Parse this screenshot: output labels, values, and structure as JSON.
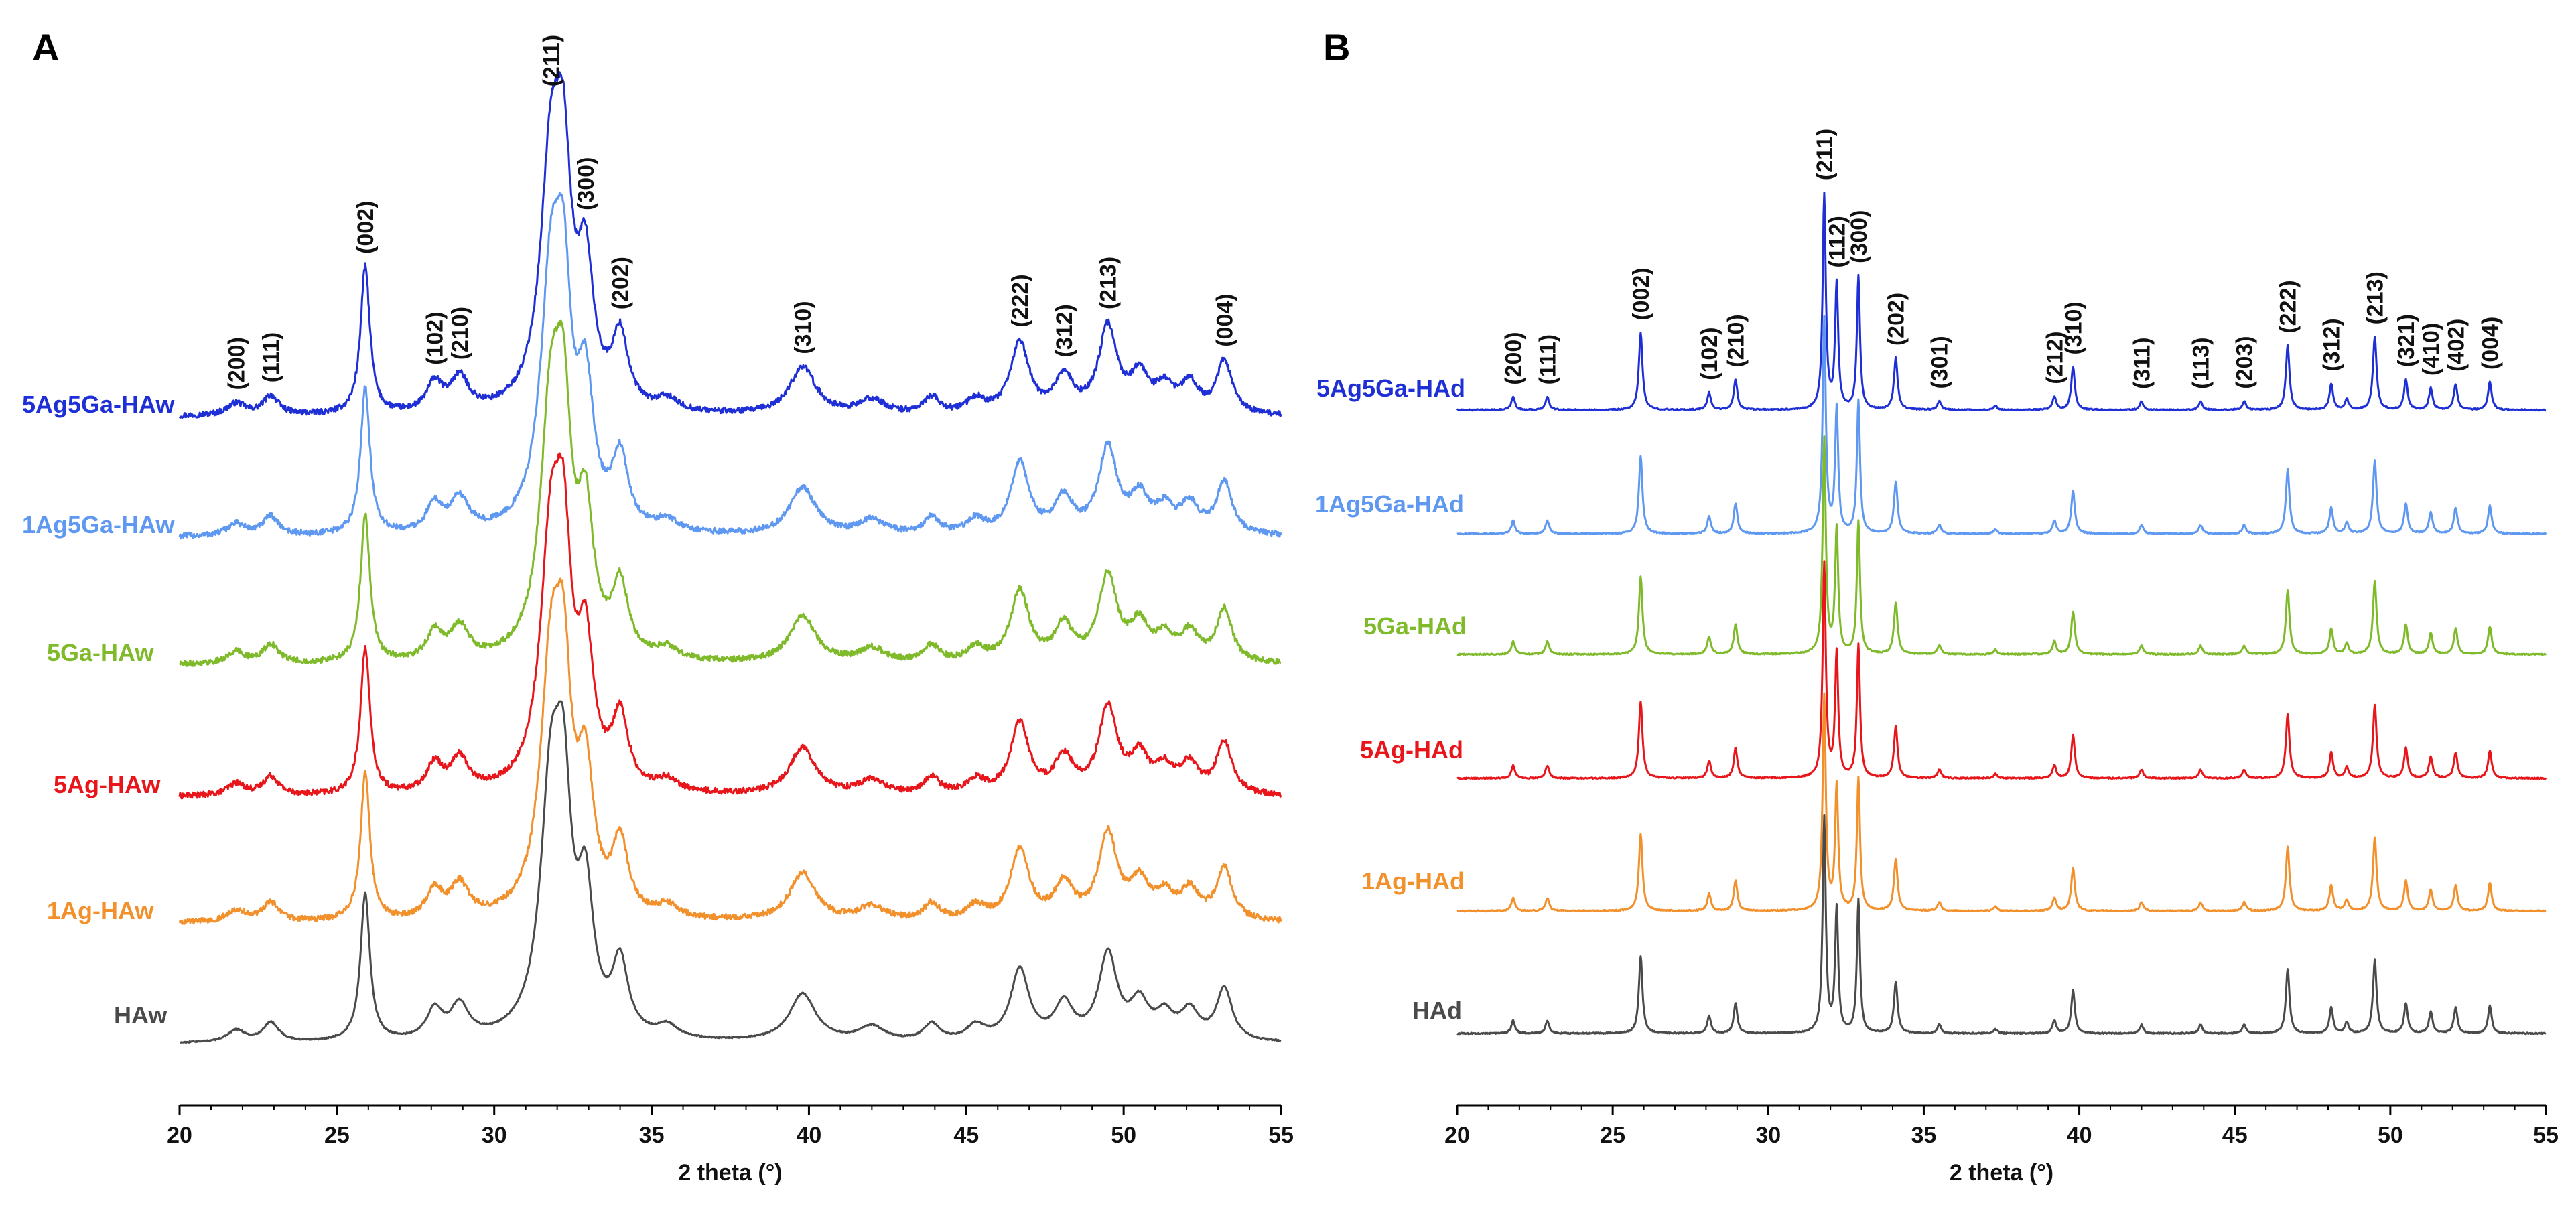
{
  "chart_data": [
    {
      "type": "line",
      "panel": "A",
      "xlabel": "2 theta (°)",
      "ylabel": "",
      "xlim": [
        20,
        55
      ],
      "x_ticks": [
        "20",
        "25",
        "30",
        "35",
        "40",
        "45",
        "50",
        "55"
      ],
      "linewidth_style": "broad",
      "peaks": [
        {
          "pos": 21.8,
          "h": 0.05,
          "w": 0.35
        },
        {
          "pos": 22.9,
          "h": 0.08,
          "w": 0.3
        },
        {
          "pos": 25.9,
          "h": 0.62,
          "w": 0.18
        },
        {
          "pos": 28.1,
          "h": 0.12,
          "w": 0.3
        },
        {
          "pos": 28.9,
          "h": 0.14,
          "w": 0.35
        },
        {
          "pos": 31.8,
          "h": 1.0,
          "w": 0.4
        },
        {
          "pos": 32.2,
          "h": 0.8,
          "w": 0.3
        },
        {
          "pos": 32.9,
          "h": 0.55,
          "w": 0.3
        },
        {
          "pos": 34.0,
          "h": 0.3,
          "w": 0.3
        },
        {
          "pos": 35.5,
          "h": 0.05,
          "w": 0.4
        },
        {
          "pos": 39.8,
          "h": 0.2,
          "w": 0.5
        },
        {
          "pos": 42.0,
          "h": 0.06,
          "w": 0.5
        },
        {
          "pos": 43.9,
          "h": 0.07,
          "w": 0.3
        },
        {
          "pos": 45.3,
          "h": 0.06,
          "w": 0.35
        },
        {
          "pos": 46.7,
          "h": 0.3,
          "w": 0.35
        },
        {
          "pos": 48.1,
          "h": 0.15,
          "w": 0.35
        },
        {
          "pos": 49.5,
          "h": 0.36,
          "w": 0.35
        },
        {
          "pos": 50.5,
          "h": 0.15,
          "w": 0.35
        },
        {
          "pos": 51.3,
          "h": 0.1,
          "w": 0.35
        },
        {
          "pos": 52.1,
          "h": 0.12,
          "w": 0.35
        },
        {
          "pos": 53.2,
          "h": 0.22,
          "w": 0.3
        }
      ],
      "series": [
        {
          "name": "5Ag5Ga-HAw",
          "color": "#1f2fd6",
          "noise": 0.012
        },
        {
          "name": "1Ag5Ga-HAw",
          "color": "#5f98f0",
          "noise": 0.012
        },
        {
          "name": "5Ga-HAw",
          "color": "#7fba2a",
          "noise": 0.012
        },
        {
          "name": "5Ag-HAw",
          "color": "#e8161b",
          "noise": 0.012
        },
        {
          "name": "1Ag-HAw",
          "color": "#f2902b",
          "noise": 0.012
        },
        {
          "name": "HAw",
          "color": "#4a4a4a",
          "noise": 0.003
        }
      ],
      "annotations": [
        {
          "label": "(200)",
          "x": 21.8
        },
        {
          "label": "(111)",
          "x": 22.9
        },
        {
          "label": "(002)",
          "x": 25.9
        },
        {
          "label": "(102)",
          "x": 28.1
        },
        {
          "label": "(210)",
          "x": 28.9
        },
        {
          "label": "(211)",
          "x": 31.8
        },
        {
          "label": "(300)",
          "x": 32.9
        },
        {
          "label": "(202)",
          "x": 34.0
        },
        {
          "label": "(310)",
          "x": 39.8
        },
        {
          "label": "(222)",
          "x": 46.7
        },
        {
          "label": "(312)",
          "x": 48.1
        },
        {
          "label": "(213)",
          "x": 49.5
        },
        {
          "label": "(004)",
          "x": 53.2
        }
      ]
    },
    {
      "type": "line",
      "panel": "B",
      "xlabel": "2 theta (°)",
      "ylabel": "",
      "xlim": [
        20,
        55
      ],
      "x_ticks": [
        "20",
        "25",
        "30",
        "35",
        "40",
        "45",
        "50",
        "55"
      ],
      "linewidth_style": "sharp",
      "peaks": [
        {
          "pos": 21.8,
          "h": 0.06,
          "w": 0.07
        },
        {
          "pos": 22.9,
          "h": 0.06,
          "w": 0.07
        },
        {
          "pos": 25.9,
          "h": 0.36,
          "w": 0.07
        },
        {
          "pos": 28.1,
          "h": 0.08,
          "w": 0.07
        },
        {
          "pos": 28.95,
          "h": 0.14,
          "w": 0.07
        },
        {
          "pos": 31.8,
          "h": 1.0,
          "w": 0.06
        },
        {
          "pos": 32.2,
          "h": 0.58,
          "w": 0.06
        },
        {
          "pos": 32.9,
          "h": 0.62,
          "w": 0.06
        },
        {
          "pos": 34.1,
          "h": 0.24,
          "w": 0.07
        },
        {
          "pos": 35.5,
          "h": 0.04,
          "w": 0.07
        },
        {
          "pos": 37.3,
          "h": 0.02,
          "w": 0.07
        },
        {
          "pos": 39.2,
          "h": 0.06,
          "w": 0.07
        },
        {
          "pos": 39.8,
          "h": 0.2,
          "w": 0.07
        },
        {
          "pos": 42.0,
          "h": 0.04,
          "w": 0.07
        },
        {
          "pos": 43.9,
          "h": 0.04,
          "w": 0.07
        },
        {
          "pos": 45.3,
          "h": 0.04,
          "w": 0.07
        },
        {
          "pos": 46.7,
          "h": 0.3,
          "w": 0.07
        },
        {
          "pos": 48.1,
          "h": 0.12,
          "w": 0.07
        },
        {
          "pos": 48.6,
          "h": 0.05,
          "w": 0.07
        },
        {
          "pos": 49.5,
          "h": 0.34,
          "w": 0.07
        },
        {
          "pos": 50.5,
          "h": 0.14,
          "w": 0.07
        },
        {
          "pos": 51.3,
          "h": 0.1,
          "w": 0.07
        },
        {
          "pos": 52.1,
          "h": 0.12,
          "w": 0.07
        },
        {
          "pos": 53.2,
          "h": 0.13,
          "w": 0.07
        }
      ],
      "series": [
        {
          "name": "5Ag5Ga-HAd",
          "color": "#1f2fd6",
          "noise": 0.003
        },
        {
          "name": "1Ag5Ga-HAd",
          "color": "#5f98f0",
          "noise": 0.003
        },
        {
          "name": "5Ga-HAd",
          "color": "#7fba2a",
          "noise": 0.003
        },
        {
          "name": "5Ag-HAd",
          "color": "#e8161b",
          "noise": 0.003
        },
        {
          "name": "1Ag-HAd",
          "color": "#f2902b",
          "noise": 0.003
        },
        {
          "name": "HAd",
          "color": "#4a4a4a",
          "noise": 0.003
        }
      ],
      "annotations": [
        {
          "label": "(200)",
          "x": 21.8
        },
        {
          "label": "(111)",
          "x": 22.9
        },
        {
          "label": "(002)",
          "x": 25.9
        },
        {
          "label": "(102)",
          "x": 28.1
        },
        {
          "label": "(210)",
          "x": 28.95
        },
        {
          "label": "(211)",
          "x": 31.8
        },
        {
          "label": "(112)",
          "x": 32.2
        },
        {
          "label": "(300)",
          "x": 32.9
        },
        {
          "label": "(202)",
          "x": 34.1
        },
        {
          "label": "(301)",
          "x": 35.5
        },
        {
          "label": "(212)",
          "x": 39.2
        },
        {
          "label": "(310)",
          "x": 39.8
        },
        {
          "label": "(311)",
          "x": 42.0
        },
        {
          "label": "(113)",
          "x": 43.9
        },
        {
          "label": "(203)",
          "x": 45.3
        },
        {
          "label": "(222)",
          "x": 46.7
        },
        {
          "label": "(312)",
          "x": 48.1
        },
        {
          "label": "(213)",
          "x": 49.5
        },
        {
          "label": "(321)",
          "x": 50.5
        },
        {
          "label": "(410)",
          "x": 51.3
        },
        {
          "label": "(402)",
          "x": 52.1
        },
        {
          "label": "(004)",
          "x": 53.2
        }
      ]
    }
  ]
}
